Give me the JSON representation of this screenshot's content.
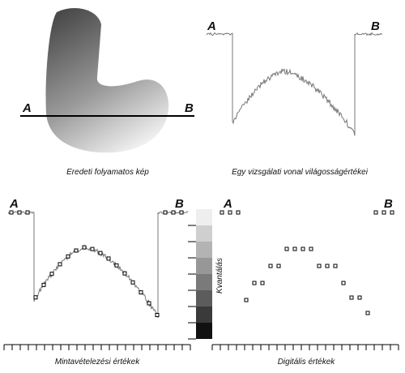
{
  "image": {
    "label_a": "A",
    "label_b": "B",
    "caption": "Eredeti folyamatos kép"
  },
  "profile": {
    "label_a": "A",
    "label_b": "B",
    "caption": "Egy vizsgálati vonal világosságértékei"
  },
  "sampling": {
    "label_a": "A",
    "label_b": "B",
    "caption": "Mintavételezési értékek"
  },
  "quantization": {
    "label": "Kvantálás"
  },
  "digital": {
    "label_a": "A",
    "label_b": "B",
    "caption": "Digitális értékek"
  }
}
